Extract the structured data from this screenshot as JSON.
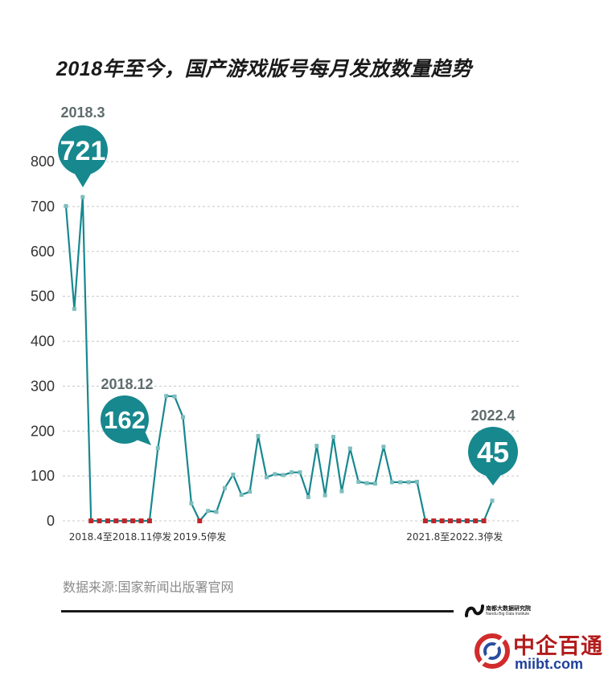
{
  "title": "2018年至今，国产游戏版号每月发放数量趋势",
  "source": "数据来源:国家新闻出版署官网",
  "brand": {
    "name_cn": "南都大数据研究院",
    "name_en": "Nandu Big Data Institute"
  },
  "watermark": {
    "name_cn": "中企百通",
    "url": "miibt.com"
  },
  "colors": {
    "line": "#17888e",
    "point": "#7dbdbe",
    "suspended": "#c0262b",
    "callout": "#17888e",
    "grid": "#c8c8c8"
  },
  "chart_data": {
    "type": "line",
    "yticks": [
      "0",
      "100",
      "200",
      "300",
      "400",
      "500",
      "600",
      "700",
      "800"
    ],
    "ylim": [
      0,
      800
    ],
    "grid": true,
    "values": [
      701,
      472,
      721,
      0,
      0,
      0,
      0,
      0,
      0,
      0,
      0,
      162,
      278,
      277,
      231,
      39,
      0,
      22,
      20,
      73,
      103,
      58,
      65,
      189,
      97,
      104,
      102,
      108,
      108,
      53,
      167,
      57,
      187,
      66,
      161,
      87,
      84,
      83,
      165,
      86,
      86,
      86,
      87,
      0,
      0,
      0,
      0,
      0,
      0,
      0,
      0,
      45
    ],
    "suspended_indices": [
      3,
      4,
      5,
      6,
      7,
      8,
      9,
      10,
      16,
      43,
      44,
      45,
      46,
      47,
      48,
      49,
      50
    ],
    "annotations": [
      {
        "date": "2018.3",
        "value": "721",
        "index": 2
      },
      {
        "date": "2018.12",
        "value": "162",
        "index": 11
      },
      {
        "date": "2022.4",
        "value": "45",
        "index": 51
      }
    ],
    "gap_labels": [
      {
        "text": "2018.4至2018.11停发",
        "start": 3,
        "end": 10
      },
      {
        "text": "2019.5停发",
        "start": 16,
        "end": 16
      },
      {
        "text": "2021.8至2022.3停发",
        "start": 43,
        "end": 50
      }
    ]
  }
}
